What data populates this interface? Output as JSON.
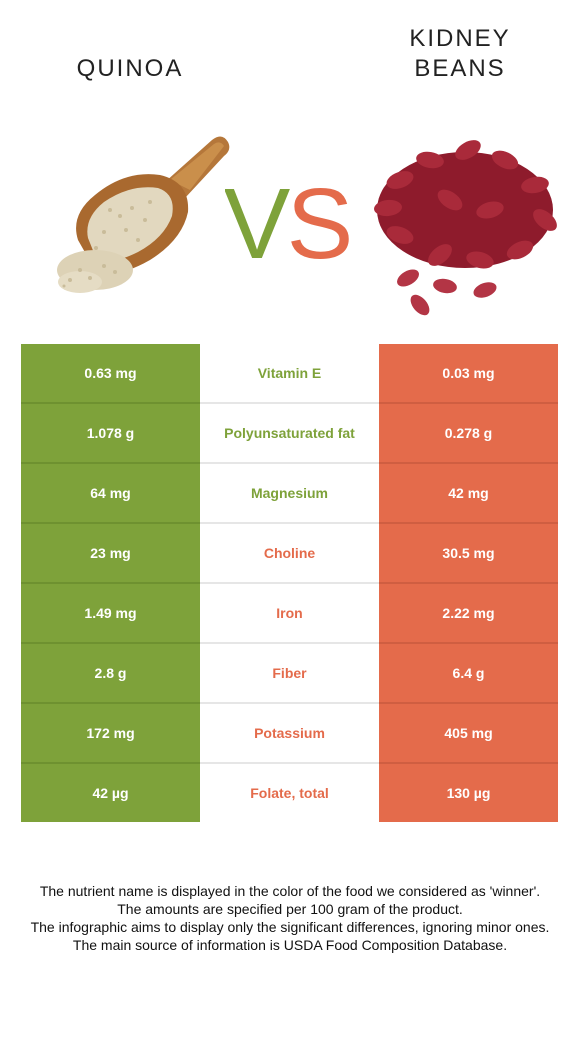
{
  "titles": {
    "left": "QUINOA",
    "right_line1": "KIDNEY",
    "right_line2": "BEANS"
  },
  "vs": {
    "v": "V",
    "s": "S"
  },
  "colors": {
    "quinoa": "#7ea23a",
    "kidney_beans": "#e46b4b"
  },
  "rows": [
    {
      "left": "0.63 mg",
      "nutrient": "Vitamin E",
      "right": "0.03 mg",
      "winner": "quinoa"
    },
    {
      "left": "1.078 g",
      "nutrient": "Polyunsaturated fat",
      "right": "0.278 g",
      "winner": "quinoa"
    },
    {
      "left": "64 mg",
      "nutrient": "Magnesium",
      "right": "42 mg",
      "winner": "quinoa"
    },
    {
      "left": "23 mg",
      "nutrient": "Choline",
      "right": "30.5 mg",
      "winner": "kidney_beans"
    },
    {
      "left": "1.49 mg",
      "nutrient": "Iron",
      "right": "2.22 mg",
      "winner": "kidney_beans"
    },
    {
      "left": "2.8 g",
      "nutrient": "Fiber",
      "right": "6.4 g",
      "winner": "kidney_beans"
    },
    {
      "left": "172 mg",
      "nutrient": "Potassium",
      "right": "405 mg",
      "winner": "kidney_beans"
    },
    {
      "left": "42 µg",
      "nutrient": "Folate, total",
      "right": "130 µg",
      "winner": "kidney_beans"
    }
  ],
  "footnotes": [
    "The nutrient name is displayed in the color of the food we considered as 'winner'.",
    "The amounts are specified per 100 gram of the product.",
    "The infographic aims to display only the significant differences, ignoring minor ones.",
    "The main source of information is USDA Food Composition Database."
  ]
}
